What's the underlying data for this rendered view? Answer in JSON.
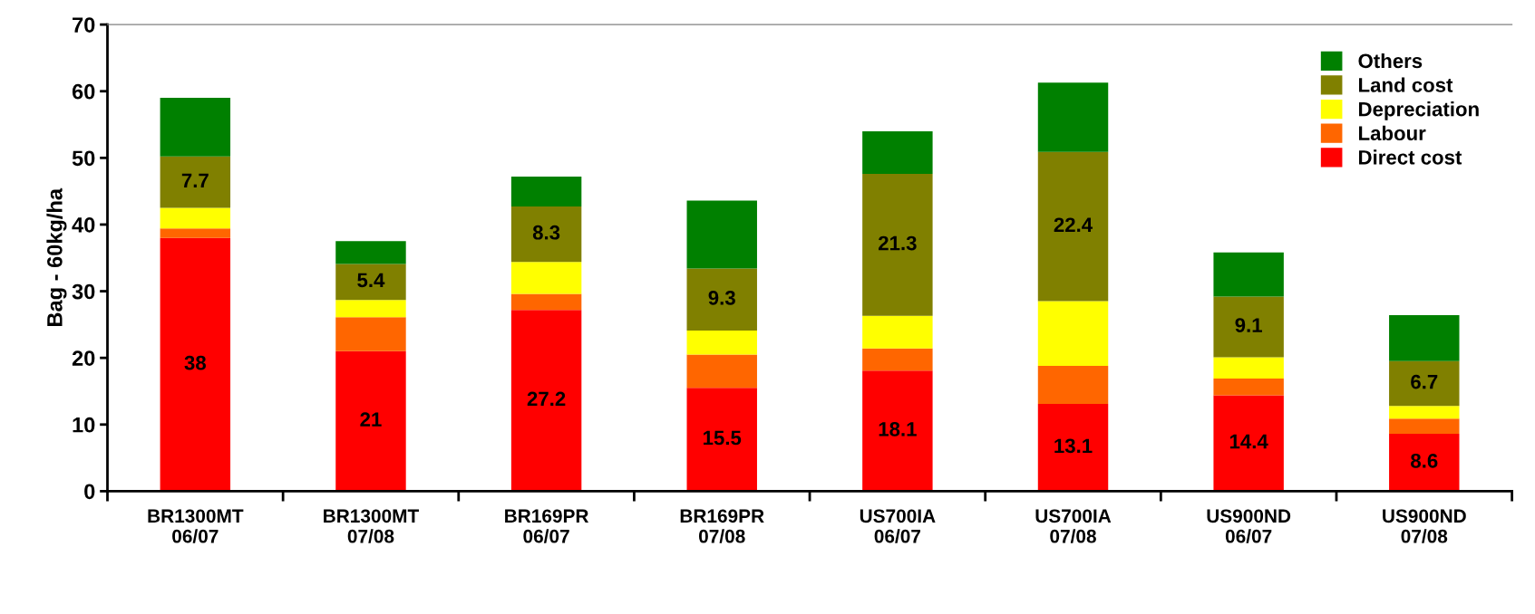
{
  "chart_data": {
    "type": "bar",
    "stacked": true,
    "ylabel": "Bag - 60kg/ha",
    "categories": [
      "BR1300MT\n06/07",
      "BR1300MT\n07/08",
      "BR169PR\n06/07",
      "BR169PR\n07/08",
      "US700IA\n06/07",
      "US700IA\n07/08",
      "US900ND\n06/07",
      "US900ND\n07/08"
    ],
    "series": [
      {
        "name": "Direct cost",
        "color": "#ff0000",
        "values": [
          38,
          21,
          27.2,
          15.5,
          18.1,
          13.1,
          14.4,
          8.6
        ],
        "value_labels": [
          "38",
          "21",
          "27.2",
          "15.5",
          "18.1",
          "13.1",
          "14.4",
          "8.6"
        ]
      },
      {
        "name": "Labour",
        "color": "#ff6600",
        "values": [
          1.4,
          5.1,
          2.4,
          5.0,
          3.3,
          5.7,
          2.5,
          2.3
        ]
      },
      {
        "name": "Depreciation",
        "color": "#ffff00",
        "values": [
          3.1,
          2.6,
          4.8,
          3.6,
          4.9,
          9.7,
          3.2,
          1.9
        ]
      },
      {
        "name": "Land cost",
        "color": "#808000",
        "values": [
          7.7,
          5.4,
          8.3,
          9.3,
          21.3,
          22.4,
          9.1,
          6.7
        ],
        "value_labels": [
          "7.7",
          "5.4",
          "8.3",
          "9.3",
          "21.3",
          "22.4",
          "9.1",
          "6.7"
        ]
      },
      {
        "name": "Others",
        "color": "#008000",
        "values": [
          8.8,
          3.4,
          4.5,
          10.2,
          6.4,
          10.4,
          6.6,
          6.9
        ]
      }
    ],
    "ylim": [
      0,
      70
    ],
    "yticks": [
      0,
      10,
      20,
      30,
      40,
      50,
      60,
      70
    ],
    "legend": "top right"
  }
}
